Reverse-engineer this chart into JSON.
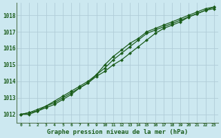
{
  "title": "Graphe pression niveau de la mer (hPa)",
  "background_color": "#cce8f0",
  "grid_color": "#b0ccd8",
  "line_color": "#1a5c1a",
  "marker_color": "#1a5c1a",
  "x_values": [
    0,
    1,
    2,
    3,
    4,
    5,
    6,
    7,
    8,
    9,
    10,
    11,
    12,
    13,
    14,
    15,
    16,
    17,
    18,
    19,
    20,
    21,
    22,
    23
  ],
  "line1": [
    1012.0,
    1012.0,
    1012.2,
    1012.4,
    1012.6,
    1012.9,
    1013.2,
    1013.6,
    1013.9,
    1014.3,
    1014.6,
    1015.0,
    1015.3,
    1015.7,
    1016.1,
    1016.5,
    1016.9,
    1017.2,
    1017.4,
    1017.6,
    1017.9,
    1018.1,
    1018.3,
    1018.5
  ],
  "line2": [
    1012.0,
    1012.1,
    1012.3,
    1012.5,
    1012.8,
    1013.1,
    1013.4,
    1013.7,
    1014.0,
    1014.4,
    1014.8,
    1015.3,
    1015.7,
    1016.1,
    1016.5,
    1016.9,
    1017.1,
    1017.3,
    1017.5,
    1017.7,
    1017.9,
    1018.1,
    1018.3,
    1018.4
  ],
  "line3": [
    1012.0,
    1012.1,
    1012.2,
    1012.5,
    1012.7,
    1013.0,
    1013.3,
    1013.6,
    1013.9,
    1014.4,
    1015.0,
    1015.5,
    1015.9,
    1016.3,
    1016.6,
    1017.0,
    1017.2,
    1017.4,
    1017.6,
    1017.8,
    1018.0,
    1018.2,
    1018.4,
    1018.5
  ],
  "ylim_min": 1011.5,
  "ylim_max": 1018.75,
  "yticks": [
    1012,
    1013,
    1014,
    1015,
    1016,
    1017,
    1018
  ],
  "xlim_min": -0.5,
  "xlim_max": 23.5,
  "xticks": [
    0,
    1,
    2,
    3,
    4,
    5,
    6,
    7,
    8,
    9,
    10,
    11,
    12,
    13,
    14,
    15,
    16,
    17,
    18,
    19,
    20,
    21,
    22,
    23
  ],
  "xlabel_fontsize": 6.5,
  "ytick_fontsize": 5.5,
  "xtick_fontsize": 4.5
}
